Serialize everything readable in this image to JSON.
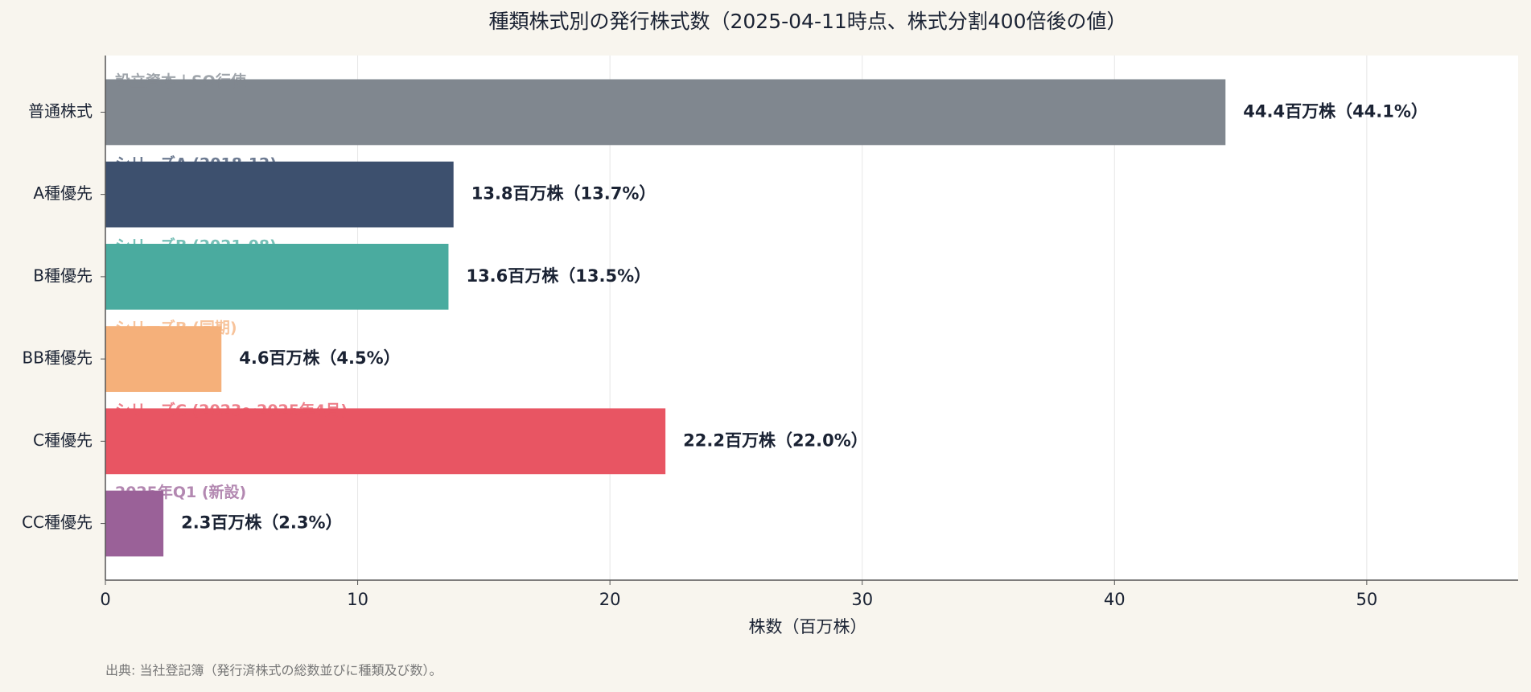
{
  "chart_data": {
    "type": "barh",
    "title": "種類株式別の発行株式数（2025-04-11時点、株式分割400倍後の値）",
    "x_label": "株数（百万株）",
    "source": "出典: 当社登記簿（発行済株式の総数並びに種類及び数）。",
    "categories": [
      "普通株式",
      "A種優先",
      "B種優先",
      "BB種優先",
      "C種優先",
      "CC種優先"
    ],
    "values": [
      44.4,
      13.8,
      13.6,
      4.6,
      22.2,
      2.3
    ],
    "value_labels": [
      "44.4百万株（44.1%）",
      "13.8百万株（13.7%）",
      "13.6百万株（13.5%）",
      "4.6百万株（4.5%）",
      "22.2百万株（22.0%）",
      "2.3百万株（2.3%）"
    ],
    "annotations": [
      "設立資本＋SO行使",
      "シリーズA (2018-12)",
      "シリーズB (2021-08)",
      "シリーズB (同期)",
      "シリーズC (2023〜2025年4月)",
      "2025年Q1 (新設)"
    ],
    "colors": [
      "#80878f",
      "#3d506e",
      "#4aab9f",
      "#f5b07a",
      "#e85563",
      "#9a6198"
    ],
    "xlim": [
      0,
      56
    ],
    "xticks": [
      0,
      10,
      20,
      30,
      40,
      50
    ],
    "grid": true
  }
}
